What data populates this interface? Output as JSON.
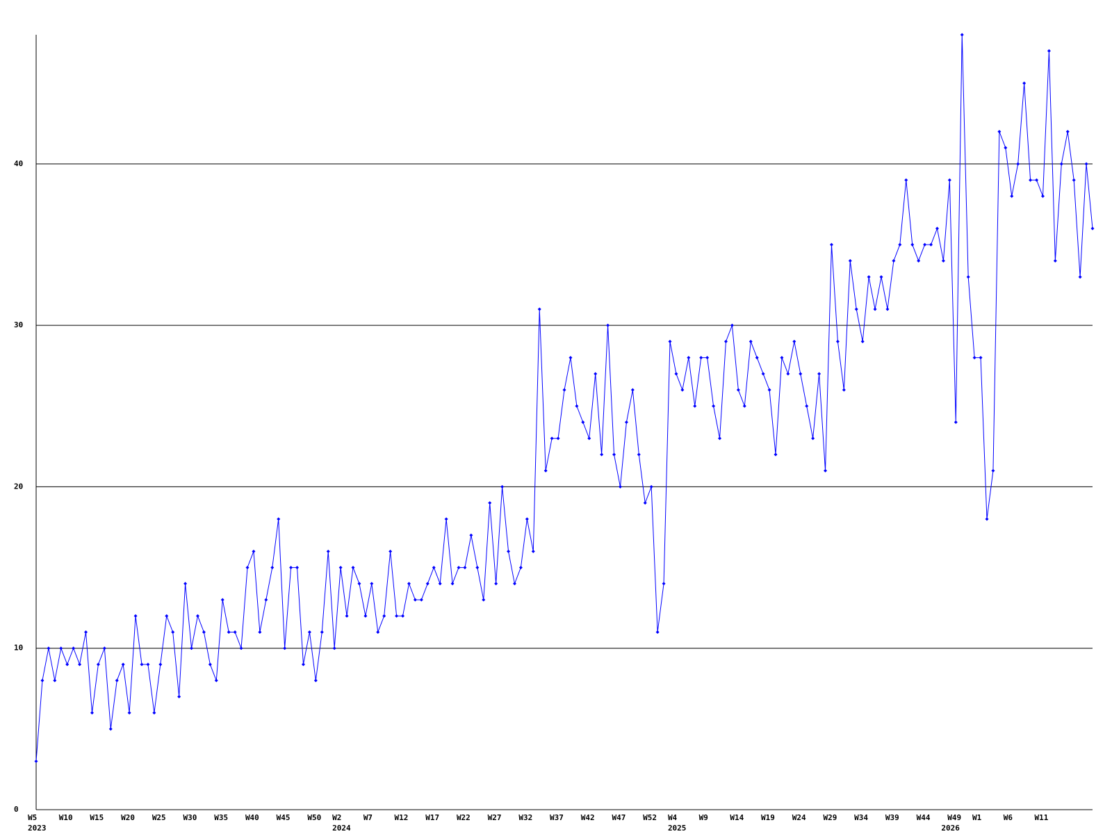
{
  "chart_data": {
    "type": "line",
    "categories": [
      "W5",
      null,
      null,
      null,
      null,
      "W10",
      null,
      null,
      null,
      null,
      "W15",
      null,
      null,
      null,
      null,
      "W20",
      null,
      null,
      null,
      null,
      "W25",
      null,
      null,
      null,
      null,
      "W30",
      null,
      null,
      null,
      null,
      "W35",
      null,
      null,
      null,
      null,
      "W40",
      null,
      null,
      null,
      null,
      "W45",
      null,
      null,
      null,
      null,
      "W50",
      null,
      null,
      null,
      "W2",
      null,
      null,
      null,
      null,
      "W7",
      null,
      null,
      null,
      null,
      "W12",
      null,
      null,
      null,
      null,
      "W17",
      null,
      null,
      null,
      null,
      "W22",
      null,
      null,
      null,
      null,
      "W27",
      null,
      null,
      null,
      null,
      "W32",
      null,
      null,
      null,
      null,
      "W37",
      null,
      null,
      null,
      null,
      "W42",
      null,
      null,
      null,
      null,
      "W47",
      null,
      null,
      null,
      null,
      "W52",
      null,
      null,
      null,
      "W4",
      null,
      null,
      null,
      null,
      "W9",
      null,
      null,
      null,
      null,
      "W14",
      null,
      null,
      null,
      null,
      "W19",
      null,
      null,
      null,
      null,
      "W24",
      null,
      null,
      null,
      null,
      "W29",
      null,
      null,
      null,
      null,
      "W34",
      null,
      null,
      null,
      null,
      "W39",
      null,
      null,
      null,
      null,
      "W44",
      null,
      null,
      null,
      null,
      "W49",
      null,
      null,
      null,
      "W1",
      null,
      null,
      null,
      null,
      "W6",
      null,
      null,
      null,
      null,
      "W11",
      null,
      null,
      null,
      null,
      null,
      null,
      null,
      null
    ],
    "years": [
      "2023",
      null,
      null,
      null,
      null,
      null,
      null,
      null,
      null,
      null,
      null,
      null,
      null,
      null,
      null,
      null,
      null,
      null,
      null,
      null,
      null,
      null,
      null,
      null,
      null,
      null,
      null,
      null,
      null,
      null,
      null,
      null,
      null,
      null,
      null,
      null,
      null,
      null,
      null,
      null,
      null,
      null,
      null,
      null,
      null,
      null,
      null,
      null,
      null,
      "2024",
      null,
      null,
      null,
      null,
      null,
      null,
      null,
      null,
      null,
      null,
      null,
      null,
      null,
      null,
      null,
      null,
      null,
      null,
      null,
      null,
      null,
      null,
      null,
      null,
      null,
      null,
      null,
      null,
      null,
      null,
      null,
      null,
      null,
      null,
      null,
      null,
      null,
      null,
      null,
      null,
      null,
      null,
      null,
      null,
      null,
      null,
      null,
      null,
      null,
      null,
      null,
      null,
      null,
      "2025",
      null,
      null,
      null,
      null,
      null,
      null,
      null,
      null,
      null,
      null,
      null,
      null,
      null,
      null,
      null,
      null,
      null,
      null,
      null,
      null,
      null,
      null,
      null,
      null,
      null,
      null,
      null,
      null,
      null,
      null,
      null,
      null,
      null,
      null,
      null,
      null,
      null,
      null,
      null,
      null,
      null,
      null,
      null,
      "2026",
      null,
      null,
      null,
      null,
      null,
      null,
      null,
      null,
      null,
      null,
      null,
      null,
      null,
      null,
      null,
      null,
      null,
      null
    ],
    "series": [
      {
        "color": "#0000ff",
        "values": [
          3,
          8,
          10,
          8,
          10,
          9,
          10,
          9,
          11,
          6,
          9,
          10,
          5,
          8,
          9,
          6,
          12,
          9,
          9,
          6,
          9,
          12,
          11,
          7,
          14,
          10,
          12,
          11,
          9,
          8,
          13,
          11,
          11,
          10,
          15,
          16,
          11,
          13,
          15,
          18,
          10,
          15,
          15,
          9,
          11,
          8,
          11,
          16,
          10,
          15,
          12,
          15,
          14,
          12,
          14,
          11,
          12,
          16,
          12,
          12,
          14,
          13,
          13,
          14,
          15,
          14,
          18,
          14,
          15,
          15,
          17,
          15,
          13,
          19,
          14,
          20,
          16,
          14,
          15,
          18,
          16,
          31,
          21,
          23,
          23,
          26,
          28,
          25,
          24,
          23,
          27,
          22,
          30,
          22,
          20,
          24,
          26,
          22,
          19,
          20,
          11,
          14,
          29,
          27,
          26,
          28,
          25,
          28,
          28,
          25,
          23,
          29,
          30,
          26,
          25,
          29,
          28,
          27,
          26,
          22,
          28,
          27,
          29,
          27,
          25,
          23,
          27,
          21,
          35,
          29,
          26,
          34,
          31,
          29,
          33,
          31,
          33,
          31,
          34,
          35,
          39,
          35,
          34,
          35,
          35,
          36,
          34,
          39,
          24,
          48,
          33,
          28,
          28,
          18,
          21,
          42,
          41,
          38,
          40,
          45,
          39,
          39,
          38,
          47,
          34,
          40,
          42,
          39,
          33,
          40,
          36
        ]
      }
    ],
    "ylim": [
      0,
      48
    ],
    "yticks": [
      0,
      10,
      20,
      30,
      40
    ],
    "grid": true
  }
}
